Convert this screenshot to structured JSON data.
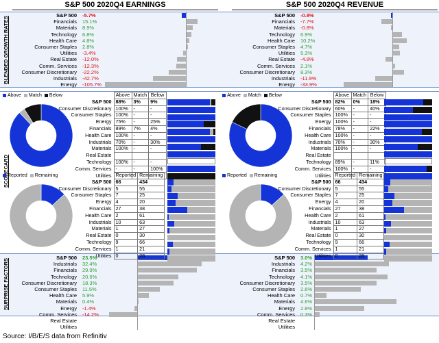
{
  "titles": {
    "left": "S&P 500 2020Q4 EARNINGS",
    "right": "S&P 500 2020Q4 REVENUE"
  },
  "section_labels": {
    "growth": "BLENDED GROWTH RATES",
    "scorecard": "SCORECARD",
    "surprise": "SURPRISE FACTORS"
  },
  "source": "Source: I/B/E/S data from Refinitiv",
  "colors": {
    "blue": "#1434d8",
    "gray": "#b4b4b4",
    "black": "#111111",
    "green": "#2e9e34",
    "red": "#e01010"
  },
  "growth": {
    "left": {
      "rows": [
        {
          "label": "S&P 500",
          "text": "-5.7%",
          "value": -5.7
        },
        {
          "label": "Financials",
          "text": "15.1%",
          "value": 15.1
        },
        {
          "label": "Materials",
          "text": "8.9%",
          "value": 8.9
        },
        {
          "label": "Technology",
          "text": "6.8%",
          "value": 6.8
        },
        {
          "label": "Health Care",
          "text": "4.8%",
          "value": 4.8
        },
        {
          "label": "Consumer Staples",
          "text": "2.8%",
          "value": 2.8
        },
        {
          "label": "Utilities",
          "text": "-3.4%",
          "value": -3.4
        },
        {
          "label": "Real Estate",
          "text": "-12.0%",
          "value": -12.0
        },
        {
          "label": "Comm. Services",
          "text": "-12.3%",
          "value": -12.3
        },
        {
          "label": "Consumer Discretionary",
          "text": "-22.2%",
          "value": -22.2
        },
        {
          "label": "Industrials",
          "text": "-42.7%",
          "value": -42.7
        },
        {
          "label": "Energy",
          "text": "-105.7%",
          "value": -105.7
        }
      ]
    },
    "right": {
      "rows": [
        {
          "label": "S&P 500",
          "text": "-0.8%",
          "value": -0.8
        },
        {
          "label": "Financials",
          "text": "-7.7%",
          "value": -7.7
        },
        {
          "label": "Materials",
          "text": "-0.8%",
          "value": -0.8
        },
        {
          "label": "Technology",
          "text": "6.9%",
          "value": 6.9
        },
        {
          "label": "Health Care",
          "text": "10.2%",
          "value": 10.2
        },
        {
          "label": "Consumer Staples",
          "text": "4.7%",
          "value": 4.7
        },
        {
          "label": "Utilities",
          "text": "5.3%",
          "value": 5.3
        },
        {
          "label": "Real Estate",
          "text": "-4.8%",
          "value": -4.8
        },
        {
          "label": "Comm. Services",
          "text": "2.1%",
          "value": 2.1
        },
        {
          "label": "Consumer Discretionary",
          "text": "8.3%",
          "value": 8.3
        },
        {
          "label": "Industrials",
          "text": "-11.9%",
          "value": -11.9
        },
        {
          "label": "Energy",
          "text": "-33.9%",
          "value": -33.9
        }
      ]
    }
  },
  "scorecard": {
    "legend": [
      "Above",
      "Match",
      "Below"
    ],
    "headers": [
      "Above",
      "Match",
      "Below"
    ],
    "left": {
      "pie": {
        "above": 88,
        "match": 3,
        "below": 9
      },
      "rows": [
        {
          "label": "S&P 500",
          "above": "88%",
          "match": "3%",
          "below": "9%",
          "a": 88,
          "m": 3,
          "b": 9
        },
        {
          "label": "Consumer Discretionary",
          "above": "100%",
          "match": "-",
          "below": "-",
          "a": 100,
          "m": 0,
          "b": 0
        },
        {
          "label": "Consumer Staples",
          "above": "100%",
          "match": "-",
          "below": "-",
          "a": 100,
          "m": 0,
          "b": 0
        },
        {
          "label": "Energy",
          "above": "75%",
          "match": "-",
          "below": "25%",
          "a": 75,
          "m": 0,
          "b": 25
        },
        {
          "label": "Financials",
          "above": "89%",
          "match": "7%",
          "below": "4%",
          "a": 89,
          "m": 7,
          "b": 4
        },
        {
          "label": "Health Care",
          "above": "100%",
          "match": "-",
          "below": "-",
          "a": 100,
          "m": 0,
          "b": 0
        },
        {
          "label": "Industrials",
          "above": "70%",
          "match": "-",
          "below": "30%",
          "a": 70,
          "m": 0,
          "b": 30
        },
        {
          "label": "Materials",
          "above": "100%",
          "match": "-",
          "below": "-",
          "a": 100,
          "m": 0,
          "b": 0
        },
        {
          "label": "Real Estate",
          "above": "",
          "match": "",
          "below": "",
          "a": 0,
          "m": 0,
          "b": 0
        },
        {
          "label": "Technology",
          "above": "100%",
          "match": "-",
          "below": "-",
          "a": 100,
          "m": 0,
          "b": 0
        },
        {
          "label": "Comm. Services",
          "above": "-",
          "match": "-",
          "below": "100%",
          "a": 0,
          "m": 0,
          "b": 100
        },
        {
          "label": "Utilities",
          "above": "",
          "match": "",
          "below": "",
          "a": 0,
          "m": 0,
          "b": 0
        }
      ]
    },
    "right": {
      "pie": {
        "above": 82,
        "match": 0,
        "below": 18
      },
      "rows": [
        {
          "label": "S&P 500",
          "above": "82%",
          "match": "0%",
          "below": "18%",
          "a": 82,
          "m": 0,
          "b": 18
        },
        {
          "label": "Consumer Discretionary",
          "above": "60%",
          "match": "-",
          "below": "40%",
          "a": 60,
          "m": 0,
          "b": 40
        },
        {
          "label": "Consumer Staples",
          "above": "100%",
          "match": "-",
          "below": "-",
          "a": 100,
          "m": 0,
          "b": 0
        },
        {
          "label": "Energy",
          "above": "100%",
          "match": "-",
          "below": "-",
          "a": 100,
          "m": 0,
          "b": 0
        },
        {
          "label": "Financials",
          "above": "78%",
          "match": "-",
          "below": "22%",
          "a": 78,
          "m": 0,
          "b": 22
        },
        {
          "label": "Health Care",
          "above": "100%",
          "match": "-",
          "below": "-",
          "a": 100,
          "m": 0,
          "b": 0
        },
        {
          "label": "Industrials",
          "above": "70%",
          "match": "-",
          "below": "30%",
          "a": 70,
          "m": 0,
          "b": 30
        },
        {
          "label": "Materials",
          "above": "100%",
          "match": "-",
          "below": "-",
          "a": 100,
          "m": 0,
          "b": 0
        },
        {
          "label": "Real Estate",
          "above": "",
          "match": "",
          "below": "",
          "a": 0,
          "m": 0,
          "b": 0
        },
        {
          "label": "Technology",
          "above": "89%",
          "match": "-",
          "below": "11%",
          "a": 89,
          "m": 0,
          "b": 11
        },
        {
          "label": "Comm. Services",
          "above": "100%",
          "match": "-",
          "below": "-",
          "a": 100,
          "m": 0,
          "b": 0
        },
        {
          "label": "Utilities",
          "above": "",
          "match": "",
          "below": "",
          "a": 0,
          "m": 0,
          "b": 0
        }
      ]
    }
  },
  "reported": {
    "legend": [
      "Reported",
      "Remaining"
    ],
    "headers": [
      "Reported",
      "Remaining"
    ],
    "left": {
      "pie": {
        "reported": 66,
        "remaining": 434
      },
      "rows": [
        {
          "label": "S&P 500",
          "rep": 66,
          "rem": 434
        },
        {
          "label": "Consumer Discretionary",
          "rep": 5,
          "rem": 55
        },
        {
          "label": "Consumer Staples",
          "rep": 7,
          "rem": 25
        },
        {
          "label": "Energy",
          "rep": 4,
          "rem": 20
        },
        {
          "label": "Financials",
          "rep": 27,
          "rem": 38
        },
        {
          "label": "Health Care",
          "rep": 2,
          "rem": 61
        },
        {
          "label": "Industrials",
          "rep": 10,
          "rem": 63
        },
        {
          "label": "Materials",
          "rep": 1,
          "rem": 27
        },
        {
          "label": "Real Estate",
          "rep": 0,
          "rem": 30
        },
        {
          "label": "Technology",
          "rep": 9,
          "rem": 66
        },
        {
          "label": "Comm. Services",
          "rep": 1,
          "rem": 21
        },
        {
          "label": "Utilities",
          "rep": 0,
          "rem": 28
        }
      ]
    },
    "right": {
      "pie": {
        "reported": 66,
        "remaining": 434
      },
      "rows": [
        {
          "label": "S&P 500",
          "rep": 66,
          "rem": 434
        },
        {
          "label": "Consumer Discretionary",
          "rep": 5,
          "rem": 55
        },
        {
          "label": "Consumer Staples",
          "rep": 7,
          "rem": 25
        },
        {
          "label": "Energy",
          "rep": 4,
          "rem": 20
        },
        {
          "label": "Financials",
          "rep": 27,
          "rem": 38
        },
        {
          "label": "Health Care",
          "rep": 2,
          "rem": 61
        },
        {
          "label": "Industrials",
          "rep": 10,
          "rem": 63
        },
        {
          "label": "Materials",
          "rep": 1,
          "rem": 27
        },
        {
          "label": "Real Estate",
          "rep": 0,
          "rem": 30
        },
        {
          "label": "Technology",
          "rep": 9,
          "rem": 66
        },
        {
          "label": "Comm. Services",
          "rep": 1,
          "rem": 21
        },
        {
          "label": "Utilities",
          "rep": 0,
          "rem": 28
        }
      ]
    }
  },
  "surprise": {
    "left": {
      "rows": [
        {
          "label": "S&P 500",
          "text": "23.5%",
          "value": 23.5
        },
        {
          "label": "Industrials",
          "text": "32.4%",
          "value": 32.4
        },
        {
          "label": "Financials",
          "text": "29.9%",
          "value": 29.9
        },
        {
          "label": "Technology",
          "text": "20.6%",
          "value": 20.6
        },
        {
          "label": "Consumer Discretionary",
          "text": "18.3%",
          "value": 18.3
        },
        {
          "label": "Consumer Staples",
          "text": "11.5%",
          "value": 11.5
        },
        {
          "label": "Health Care",
          "text": "5.9%",
          "value": 5.9
        },
        {
          "label": "Materials",
          "text": "0.4%",
          "value": 0.4
        },
        {
          "label": "Energy",
          "text": "-1.4%",
          "value": -1.4
        },
        {
          "label": "Comm. Services",
          "text": "-14.2%",
          "value": -14.2
        },
        {
          "label": "Real Estate",
          "text": "",
          "value": null
        },
        {
          "label": "Utilities",
          "text": "",
          "value": null
        }
      ]
    },
    "right": {
      "rows": [
        {
          "label": "S&P 500",
          "text": "3.0%",
          "value": 3.0
        },
        {
          "label": "Industrials",
          "text": "4.2%",
          "value": 4.2
        },
        {
          "label": "Financials",
          "text": "3.5%",
          "value": 3.5
        },
        {
          "label": "Technology",
          "text": "4.1%",
          "value": 4.1
        },
        {
          "label": "Consumer Discretionary",
          "text": "3.5%",
          "value": 3.5
        },
        {
          "label": "Consumer Staples",
          "text": "2.6%",
          "value": 2.6
        },
        {
          "label": "Health Care",
          "text": "0.7%",
          "value": 0.7
        },
        {
          "label": "Materials",
          "text": "4.6%",
          "value": 4.6
        },
        {
          "label": "Energy",
          "text": "2.8%",
          "value": 2.8
        },
        {
          "label": "Comm. Services",
          "text": "0.3%",
          "value": 0.3
        },
        {
          "label": "Real Estate",
          "text": "",
          "value": null
        },
        {
          "label": "Utilities",
          "text": "",
          "value": null
        }
      ]
    }
  },
  "chart_data": [
    {
      "type": "bar",
      "categories": [
        "S&P 500",
        "Financials",
        "Materials",
        "Technology",
        "Health Care",
        "Consumer Staples",
        "Utilities",
        "Real Estate",
        "Comm. Services",
        "Consumer Discretionary",
        "Industrials",
        "Energy"
      ],
      "values": [
        -5.7,
        15.1,
        8.9,
        6.8,
        4.8,
        2.8,
        -3.4,
        -12.0,
        -12.3,
        -22.2,
        -42.7,
        -105.7
      ],
      "title": "S&P 500 2020Q4 EARNINGS"
    },
    {
      "type": "bar",
      "categories": [
        "S&P 500",
        "Financials",
        "Materials",
        "Technology",
        "Health Care",
        "Consumer Staples",
        "Utilities",
        "Real Estate",
        "Comm. Services",
        "Consumer Discretionary",
        "Industrials",
        "Energy"
      ],
      "values": [
        -0.8,
        -7.7,
        -0.8,
        6.9,
        10.2,
        4.7,
        5.3,
        -4.8,
        2.1,
        8.3,
        -11.9,
        -33.9
      ],
      "title": "S&P 500 2020Q4 REVENUE"
    },
    {
      "type": "pie",
      "categories": [
        "Above",
        "Match",
        "Below"
      ],
      "values": [
        88,
        3,
        9
      ]
    },
    {
      "type": "pie",
      "categories": [
        "Above",
        "Match",
        "Below"
      ],
      "values": [
        82,
        0,
        18
      ]
    },
    {
      "type": "pie",
      "categories": [
        "Reported",
        "Remaining"
      ],
      "values": [
        66,
        434
      ]
    },
    {
      "type": "pie",
      "categories": [
        "Reported",
        "Remaining"
      ],
      "values": [
        66,
        434
      ]
    },
    {
      "type": "bar",
      "categories": [
        "S&P 500",
        "Industrials",
        "Financials",
        "Technology",
        "Consumer Discretionary",
        "Consumer Staples",
        "Health Care",
        "Materials",
        "Energy",
        "Comm. Services"
      ],
      "values": [
        23.5,
        32.4,
        29.9,
        20.6,
        18.3,
        11.5,
        5.9,
        0.4,
        -1.4,
        -14.2
      ]
    },
    {
      "type": "bar",
      "categories": [
        "S&P 500",
        "Industrials",
        "Financials",
        "Technology",
        "Consumer Discretionary",
        "Consumer Staples",
        "Health Care",
        "Materials",
        "Energy",
        "Comm. Services"
      ],
      "values": [
        3.0,
        4.2,
        3.5,
        4.1,
        3.5,
        2.6,
        0.7,
        4.6,
        2.8,
        0.3
      ]
    }
  ]
}
